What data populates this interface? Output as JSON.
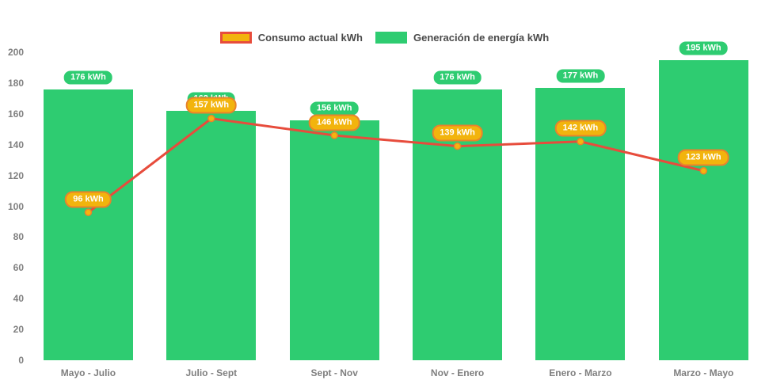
{
  "legend": {
    "consumo_label": "Consumo actual kWh",
    "generacion_label": "Generación de energía kWh"
  },
  "colors": {
    "bar_green": "#2ecc71",
    "line_red": "#e74c3c",
    "marker_fill": "#f6b40e",
    "marker_stroke": "#e8832c",
    "pill_green_fill": "#2ecc71",
    "pill_orange_fill": "#f2b40d",
    "pill_orange_border": "#e8832c",
    "axis_text": "#7f7f7f",
    "legend_text": "#4a4a4a"
  },
  "chart_data": {
    "type": "bar",
    "subtype": "bar-with-line-overlay",
    "categories": [
      "Mayo - Julio",
      "Julio - Sept",
      "Sept - Nov",
      "Nov - Enero",
      "Enero - Marzo",
      "Marzo - Mayo"
    ],
    "series": [
      {
        "name": "Generación de energía kWh",
        "type": "bar",
        "color": "#2ecc71",
        "values": [
          176,
          162,
          156,
          176,
          177,
          195
        ]
      },
      {
        "name": "Consumo actual kWh",
        "type": "line",
        "color": "#e74c3c",
        "values": [
          96,
          157,
          146,
          139,
          142,
          123
        ]
      }
    ],
    "unit_suffix": " kWh",
    "title": "",
    "xlabel": "",
    "ylabel": "",
    "ylim": [
      0,
      200
    ],
    "ytick_step": 20,
    "grid": false,
    "legend_position": "top"
  }
}
